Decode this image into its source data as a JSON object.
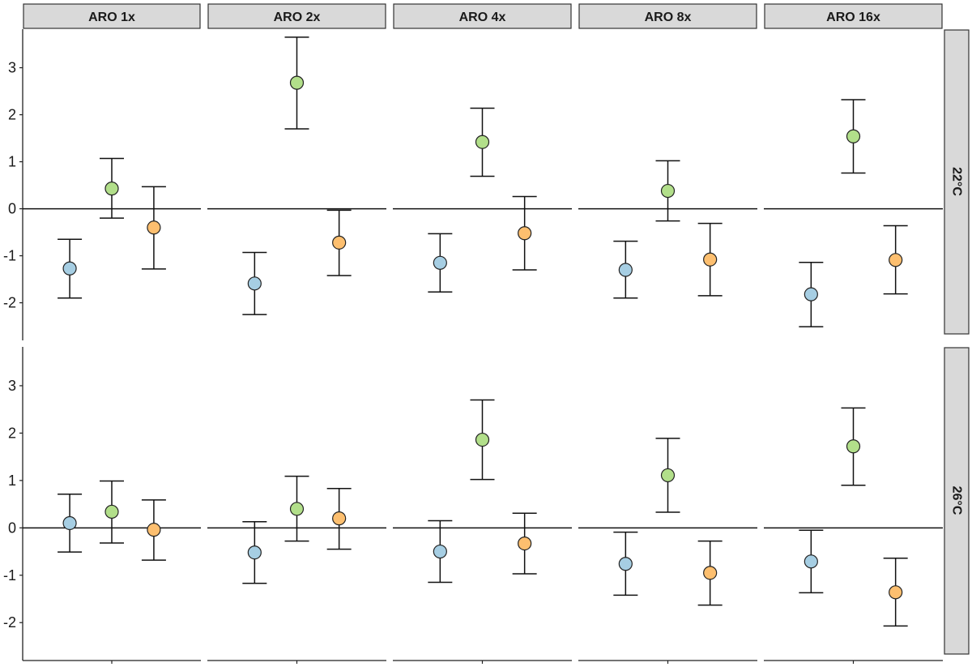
{
  "chart_data": {
    "type": "scatter",
    "subtype": "faceted point with error bars",
    "title": "",
    "xlabel": "",
    "ylabel": "",
    "ylim": [
      -2.8,
      3.82
    ],
    "yticks": [
      -2,
      -1,
      0,
      1,
      2,
      3
    ],
    "reference_line": 0,
    "grid": false,
    "legend": "none",
    "col_facets": [
      "ARO 1x",
      "ARO 2x",
      "ARO 4x",
      "ARO 8x",
      "ARO 16x"
    ],
    "row_facets": [
      "22°C",
      "26°C"
    ],
    "series_colors": [
      "#a6cee3",
      "#b2df8a",
      "#fdbf6f"
    ],
    "panels": [
      {
        "row": "22°C",
        "col": "ARO 1x",
        "points": [
          {
            "color": "#a6cee3",
            "y": -1.27,
            "ymin": -1.9,
            "ymax": -0.65
          },
          {
            "color": "#b2df8a",
            "y": 0.43,
            "ymin": -0.2,
            "ymax": 1.07
          },
          {
            "color": "#fdbf6f",
            "y": -0.4,
            "ymin": -1.28,
            "ymax": 0.47
          }
        ]
      },
      {
        "row": "22°C",
        "col": "ARO 2x",
        "points": [
          {
            "color": "#a6cee3",
            "y": -1.59,
            "ymin": -2.25,
            "ymax": -0.93
          },
          {
            "color": "#b2df8a",
            "y": 2.68,
            "ymin": 1.7,
            "ymax": 3.65
          },
          {
            "color": "#fdbf6f",
            "y": -0.72,
            "ymin": -1.42,
            "ymax": -0.03
          }
        ]
      },
      {
        "row": "22°C",
        "col": "ARO 4x",
        "points": [
          {
            "color": "#a6cee3",
            "y": -1.15,
            "ymin": -1.77,
            "ymax": -0.53
          },
          {
            "color": "#b2df8a",
            "y": 1.42,
            "ymin": 0.69,
            "ymax": 2.14
          },
          {
            "color": "#fdbf6f",
            "y": -0.52,
            "ymin": -1.3,
            "ymax": 0.26
          }
        ]
      },
      {
        "row": "22°C",
        "col": "ARO 8x",
        "points": [
          {
            "color": "#a6cee3",
            "y": -1.3,
            "ymin": -1.9,
            "ymax": -0.69
          },
          {
            "color": "#b2df8a",
            "y": 0.38,
            "ymin": -0.26,
            "ymax": 1.02
          },
          {
            "color": "#fdbf6f",
            "y": -1.08,
            "ymin": -1.85,
            "ymax": -0.31
          }
        ]
      },
      {
        "row": "22°C",
        "col": "ARO 16x",
        "points": [
          {
            "color": "#a6cee3",
            "y": -1.82,
            "ymin": -2.51,
            "ymax": -1.14
          },
          {
            "color": "#b2df8a",
            "y": 1.54,
            "ymin": 0.76,
            "ymax": 2.32
          },
          {
            "color": "#fdbf6f",
            "y": -1.09,
            "ymin": -1.81,
            "ymax": -0.36
          }
        ]
      },
      {
        "row": "26°C",
        "col": "ARO 1x",
        "points": [
          {
            "color": "#a6cee3",
            "y": 0.1,
            "ymin": -0.51,
            "ymax": 0.71
          },
          {
            "color": "#b2df8a",
            "y": 0.34,
            "ymin": -0.32,
            "ymax": 0.99
          },
          {
            "color": "#fdbf6f",
            "y": -0.04,
            "ymin": -0.68,
            "ymax": 0.59
          }
        ]
      },
      {
        "row": "26°C",
        "col": "ARO 2x",
        "points": [
          {
            "color": "#a6cee3",
            "y": -0.52,
            "ymin": -1.17,
            "ymax": 0.13
          },
          {
            "color": "#b2df8a",
            "y": 0.4,
            "ymin": -0.28,
            "ymax": 1.09
          },
          {
            "color": "#fdbf6f",
            "y": 0.2,
            "ymin": -0.45,
            "ymax": 0.83
          }
        ]
      },
      {
        "row": "26°C",
        "col": "ARO 4x",
        "points": [
          {
            "color": "#a6cee3",
            "y": -0.5,
            "ymin": -1.15,
            "ymax": 0.15
          },
          {
            "color": "#b2df8a",
            "y": 1.86,
            "ymin": 1.02,
            "ymax": 2.7
          },
          {
            "color": "#fdbf6f",
            "y": -0.33,
            "ymin": -0.97,
            "ymax": 0.31
          }
        ]
      },
      {
        "row": "26°C",
        "col": "ARO 8x",
        "points": [
          {
            "color": "#a6cee3",
            "y": -0.76,
            "ymin": -1.42,
            "ymax": -0.09
          },
          {
            "color": "#b2df8a",
            "y": 1.11,
            "ymin": 0.33,
            "ymax": 1.89
          },
          {
            "color": "#fdbf6f",
            "y": -0.95,
            "ymin": -1.63,
            "ymax": -0.28
          }
        ]
      },
      {
        "row": "26°C",
        "col": "ARO 16x",
        "points": [
          {
            "color": "#a6cee3",
            "y": -0.71,
            "ymin": -1.37,
            "ymax": -0.05
          },
          {
            "color": "#b2df8a",
            "y": 1.72,
            "ymin": 0.9,
            "ymax": 2.53
          },
          {
            "color": "#fdbf6f",
            "y": -1.36,
            "ymin": -2.07,
            "ymax": -0.64
          }
        ]
      }
    ]
  }
}
